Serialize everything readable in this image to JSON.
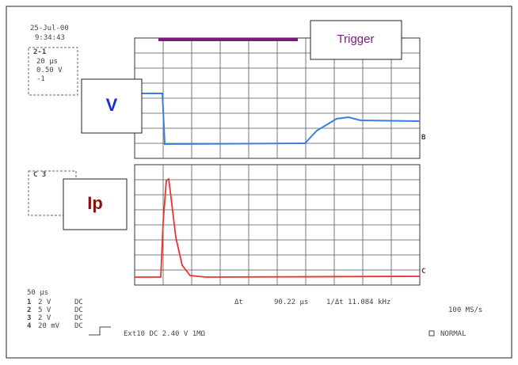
{
  "timestamp": {
    "date": "25-Jul-00",
    "time": "9:34:43"
  },
  "channel_a": {
    "label": "2-1",
    "lines": [
      "20 µs",
      "0.50 V",
      "-1"
    ]
  },
  "channel_b": {
    "label": "C 3"
  },
  "annotations": {
    "v": "V",
    "trigger": "Trigger",
    "ip": "Ip"
  },
  "markers": {
    "top": "B",
    "bottom": "C"
  },
  "footer": {
    "timebase": "50 µs",
    "channels": [
      {
        "number": "1",
        "scale": "2 V",
        "coupling": "DC"
      },
      {
        "number": "2",
        "scale": "5 V",
        "coupling": "DC"
      },
      {
        "number": "3",
        "scale": "2 V",
        "coupling": "DC"
      },
      {
        "number": "4",
        "scale": "20 mV",
        "coupling": "DC"
      }
    ],
    "delta_t_label": "Δt",
    "delta_t": "90.22 µs",
    "frequency": "1/Δt 11.084 kHz",
    "sample_rate": "100 MS/s",
    "trigger_setting": "Ext10 DC 2.40 V 1MΩ",
    "mode": "NORMAL"
  }
}
